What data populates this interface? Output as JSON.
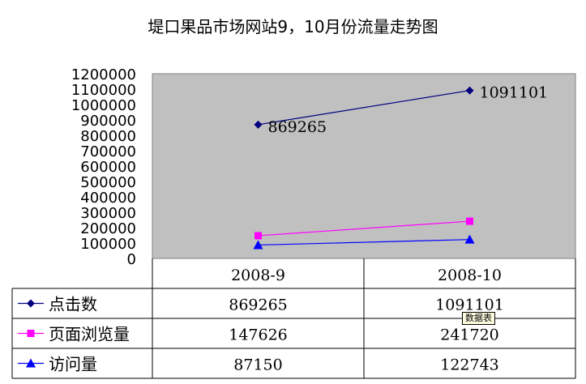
{
  "chart_data": {
    "type": "line",
    "title": "堤口果品市场网站9，10月份流量走势图",
    "categories": [
      "2008-9",
      "2008-10"
    ],
    "ylim": [
      0,
      1200000
    ],
    "ytick_step": 100000,
    "grid": false,
    "plot_background": "#c0c0c0",
    "legend": "data-table",
    "series": [
      {
        "name": "点击数",
        "values": [
          869265,
          1091101
        ],
        "color": "#000080",
        "marker": "diamond",
        "show_labels": true
      },
      {
        "name": "页面浏览量",
        "values": [
          147626,
          241720
        ],
        "color": "#ff00ff",
        "marker": "square",
        "show_labels": false
      },
      {
        "name": "访问量",
        "values": [
          87150,
          122743
        ],
        "color": "#0000ff",
        "marker": "triangle",
        "show_labels": false
      }
    ]
  },
  "tooltip": {
    "text": "数据表"
  }
}
